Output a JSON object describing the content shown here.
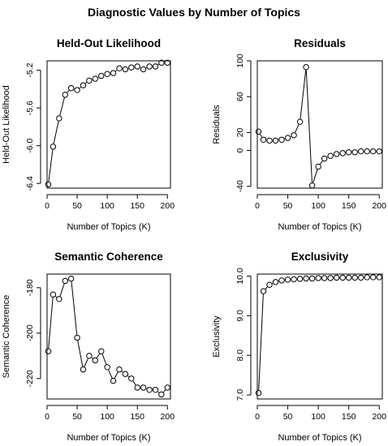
{
  "title": "Diagnostic Values by Number of Topics",
  "chart_data": [
    {
      "type": "line",
      "title": "Held-Out Likelihood",
      "xlabel": "Number of Topics (K)",
      "ylabel": "Held-Out Likelihood",
      "xlim": [
        0,
        205
      ],
      "ylim": [
        -6.45,
        -5.1
      ],
      "xticks": [
        0,
        50,
        100,
        150,
        200
      ],
      "xtick_labels": [
        "0",
        "50",
        "100",
        "150",
        "200"
      ],
      "yticks": [
        -6.4,
        -6.0,
        -5.6,
        -5.2
      ],
      "ytick_labels": [
        "-6.4",
        "-6.0",
        "-5.6",
        "-5.2"
      ],
      "x": [
        2,
        10,
        20,
        30,
        40,
        50,
        60,
        70,
        80,
        90,
        100,
        110,
        120,
        130,
        140,
        150,
        160,
        170,
        180,
        190,
        200
      ],
      "y": [
        -6.41,
        -6.01,
        -5.71,
        -5.46,
        -5.39,
        -5.41,
        -5.36,
        -5.31,
        -5.29,
        -5.26,
        -5.24,
        -5.23,
        -5.18,
        -5.19,
        -5.17,
        -5.16,
        -5.19,
        -5.16,
        -5.16,
        -5.12,
        -5.12
      ],
      "marker": "open-circle"
    },
    {
      "type": "line",
      "title": "Residuals",
      "xlabel": "Number of Topics (K)",
      "ylabel": "Residuals",
      "xlim": [
        0,
        205
      ],
      "ylim": [
        -42,
        100
      ],
      "xticks": [
        0,
        50,
        100,
        150,
        200
      ],
      "xtick_labels": [
        "0",
        "50",
        "100",
        "150",
        "200"
      ],
      "yticks": [
        -40,
        0,
        20,
        60,
        100
      ],
      "ytick_labels": [
        "-40",
        "0",
        "20",
        "60",
        "100"
      ],
      "x": [
        2,
        10,
        20,
        30,
        40,
        50,
        60,
        70,
        80,
        90,
        100,
        110,
        120,
        130,
        140,
        150,
        160,
        170,
        180,
        190,
        200
      ],
      "y": [
        21,
        12,
        11,
        11,
        12,
        14,
        17,
        32,
        93,
        -39,
        -18,
        -9,
        -6,
        -4,
        -3,
        -2,
        -2,
        -1,
        -1,
        -1,
        -1
      ],
      "marker": "open-circle"
    },
    {
      "type": "line",
      "title": "Semantic Coherence",
      "xlabel": "Number of Topics (K)",
      "ylabel": "Semantic Coherence",
      "xlim": [
        0,
        205
      ],
      "ylim": [
        -229,
        -174
      ],
      "xticks": [
        0,
        50,
        100,
        150,
        200
      ],
      "xtick_labels": [
        "0",
        "50",
        "100",
        "150",
        "200"
      ],
      "yticks": [
        -220,
        -200,
        -180
      ],
      "ytick_labels": [
        "-220",
        "-200",
        "-180"
      ],
      "x": [
        2,
        10,
        20,
        30,
        40,
        50,
        60,
        70,
        80,
        90,
        100,
        110,
        120,
        130,
        140,
        150,
        160,
        170,
        180,
        190,
        200
      ],
      "y": [
        -208,
        -183,
        -185,
        -177,
        -176,
        -202,
        -216,
        -210,
        -212,
        -208,
        -215,
        -221,
        -216,
        -218,
        -220,
        -224,
        -224,
        -225,
        -225,
        -227,
        -224
      ],
      "marker": "open-circle"
    },
    {
      "type": "line",
      "title": "Exclusivity",
      "xlabel": "Number of Topics (K)",
      "ylabel": "Exclusivity",
      "xlim": [
        0,
        205
      ],
      "ylim": [
        6.9,
        10.05
      ],
      "xticks": [
        0,
        50,
        100,
        150,
        200
      ],
      "xtick_labels": [
        "0",
        "50",
        "100",
        "150",
        "200"
      ],
      "yticks": [
        7.0,
        8.0,
        9.0,
        10.0
      ],
      "ytick_labels": [
        "7.0",
        "8.0",
        "9.0",
        "10.0"
      ],
      "x": [
        2,
        10,
        20,
        30,
        40,
        50,
        60,
        70,
        80,
        90,
        100,
        110,
        120,
        130,
        140,
        150,
        160,
        170,
        180,
        190,
        200
      ],
      "y": [
        7.05,
        9.62,
        9.78,
        9.85,
        9.89,
        9.91,
        9.92,
        9.93,
        9.94,
        9.94,
        9.95,
        9.95,
        9.95,
        9.96,
        9.96,
        9.96,
        9.96,
        9.96,
        9.97,
        9.97,
        9.97
      ],
      "marker": "open-circle"
    }
  ]
}
